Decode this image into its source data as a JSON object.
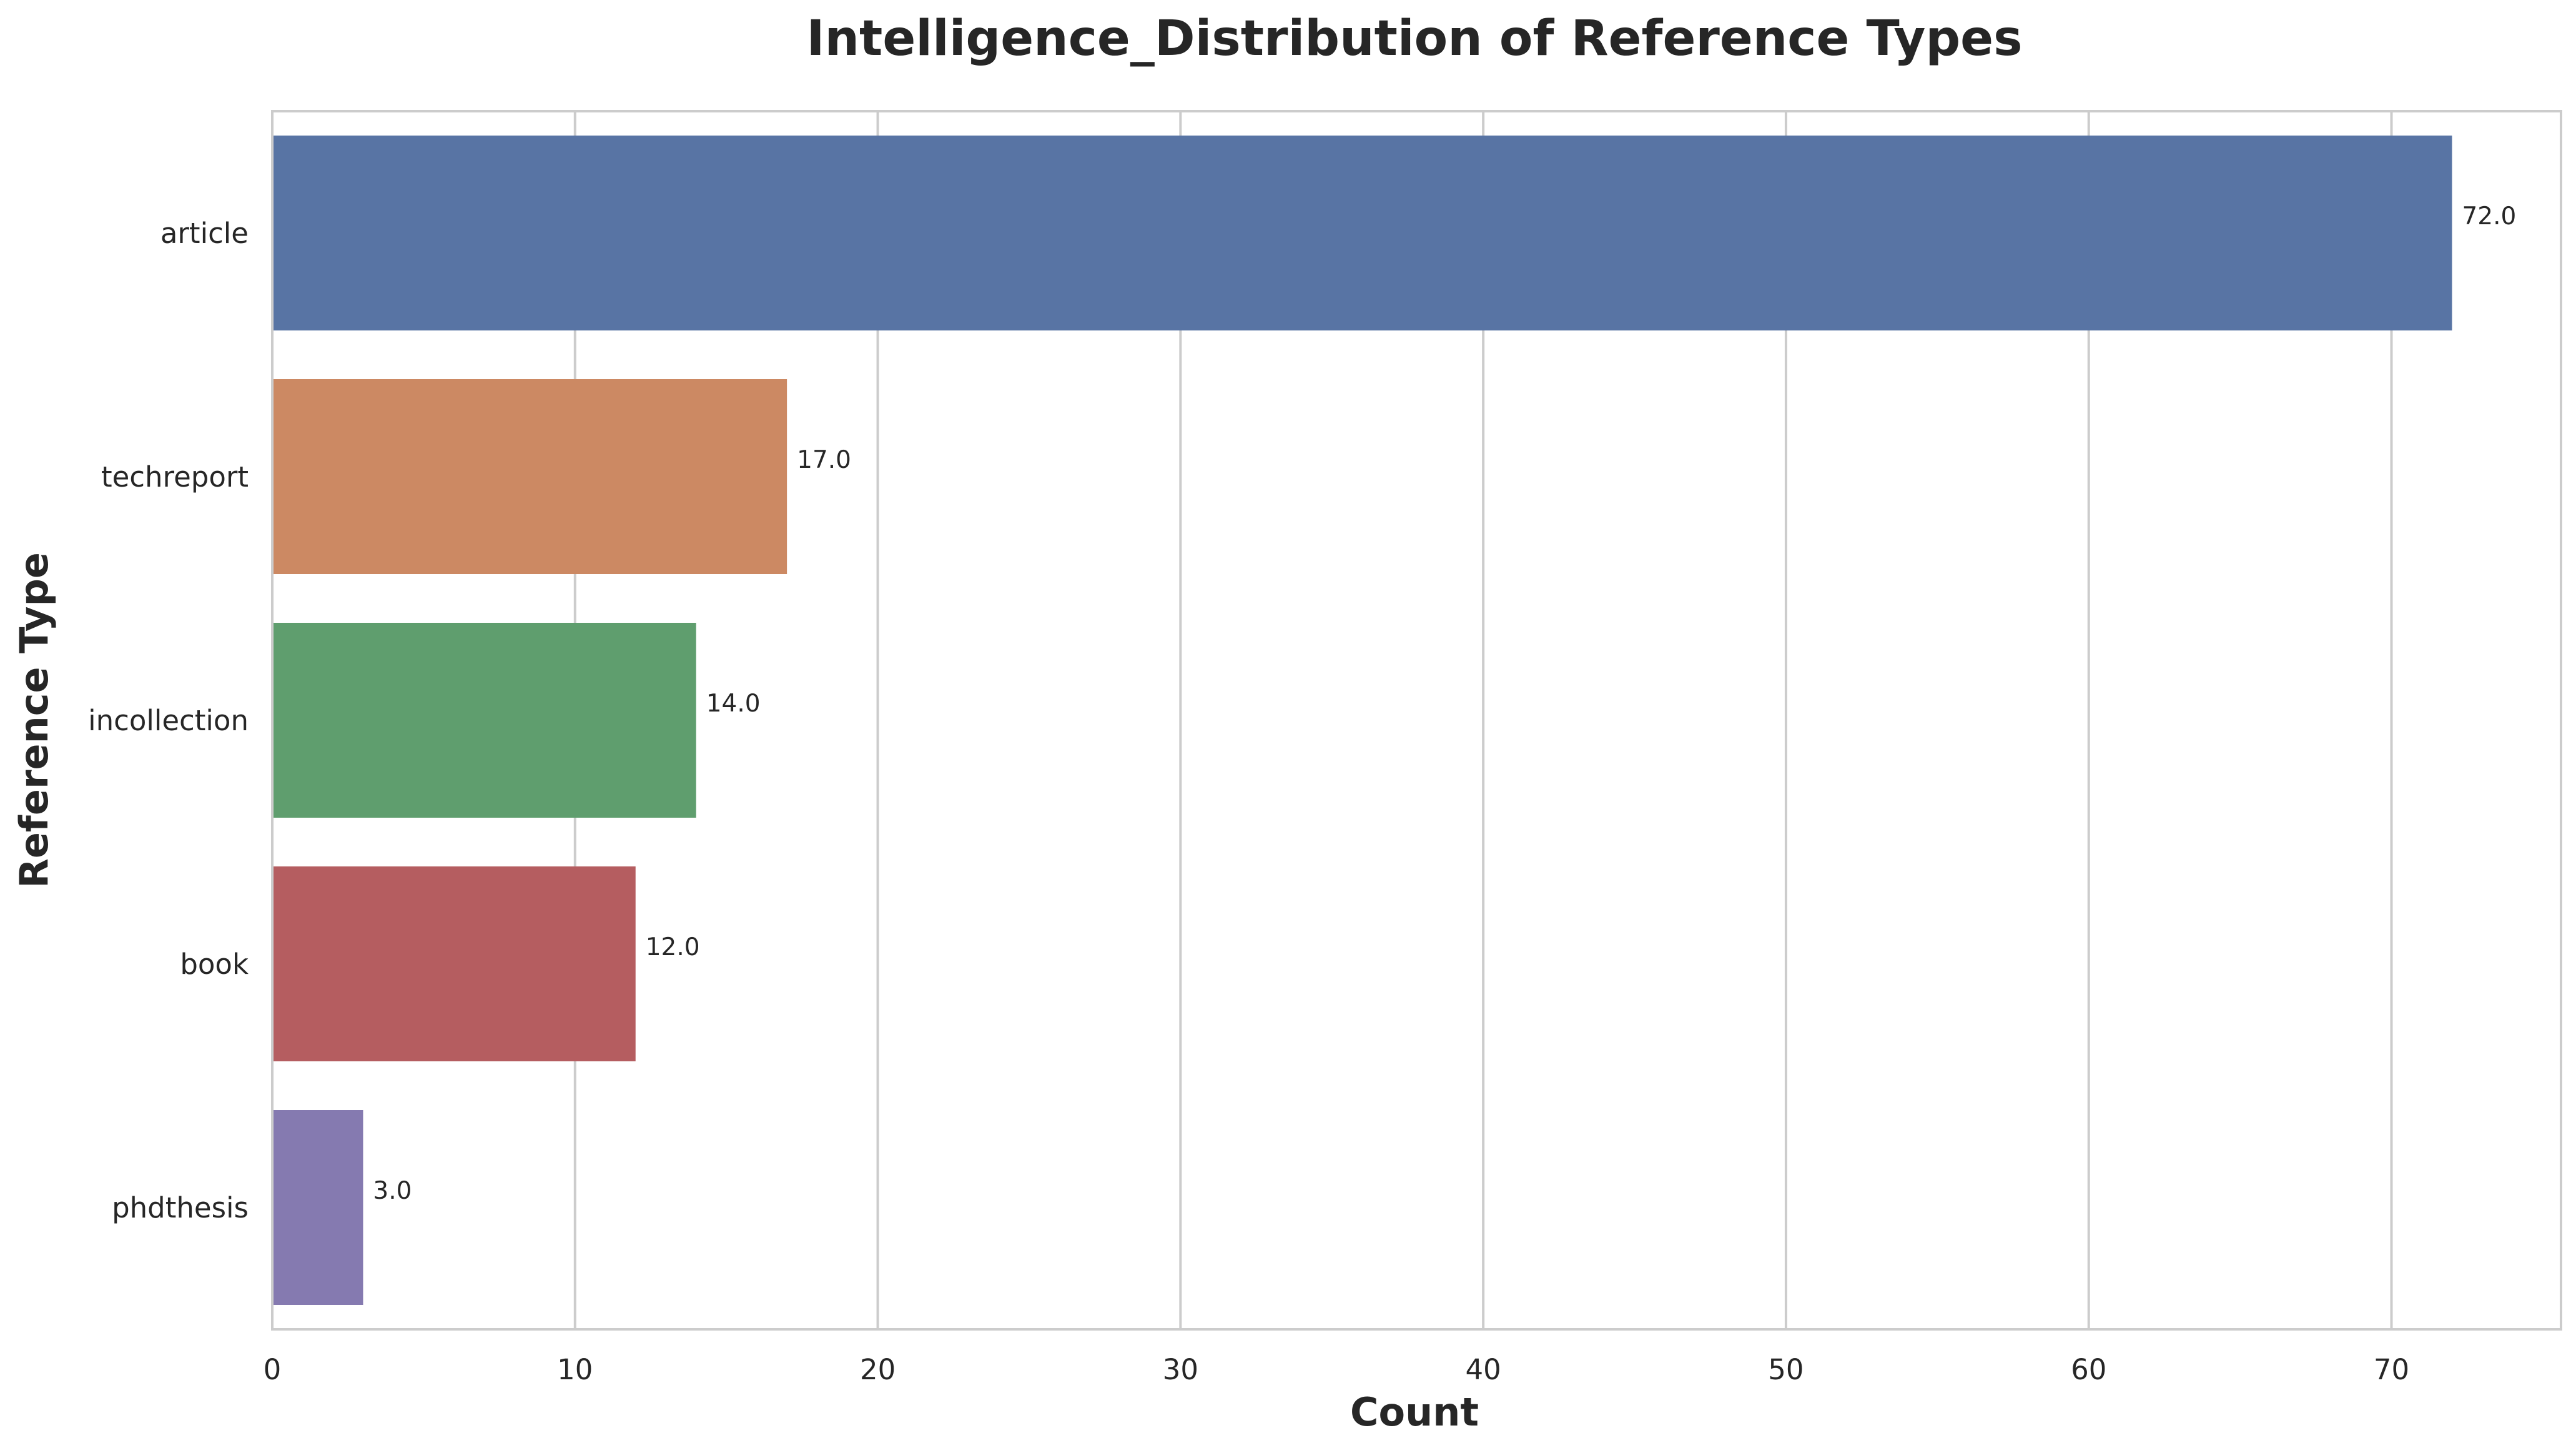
{
  "chart_data": {
    "type": "bar",
    "orientation": "horizontal",
    "title": "Intelligence_Distribution of Reference Types",
    "xlabel": "Count",
    "ylabel": "Reference Type",
    "categories": [
      "article",
      "techreport",
      "incollection",
      "book",
      "phdthesis"
    ],
    "values": [
      72,
      17,
      14,
      12,
      3
    ],
    "data_labels": [
      "72.0",
      "17.0",
      "14.0",
      "12.0",
      "3.0"
    ],
    "colors": [
      "#5874a4",
      "#cc8963",
      "#5f9e6e",
      "#b55d60",
      "#857ab0"
    ],
    "xlim": [
      0,
      75.6
    ],
    "xticks": [
      0,
      10,
      20,
      30,
      40,
      50,
      60,
      70
    ],
    "grid": true,
    "legend": "none"
  }
}
